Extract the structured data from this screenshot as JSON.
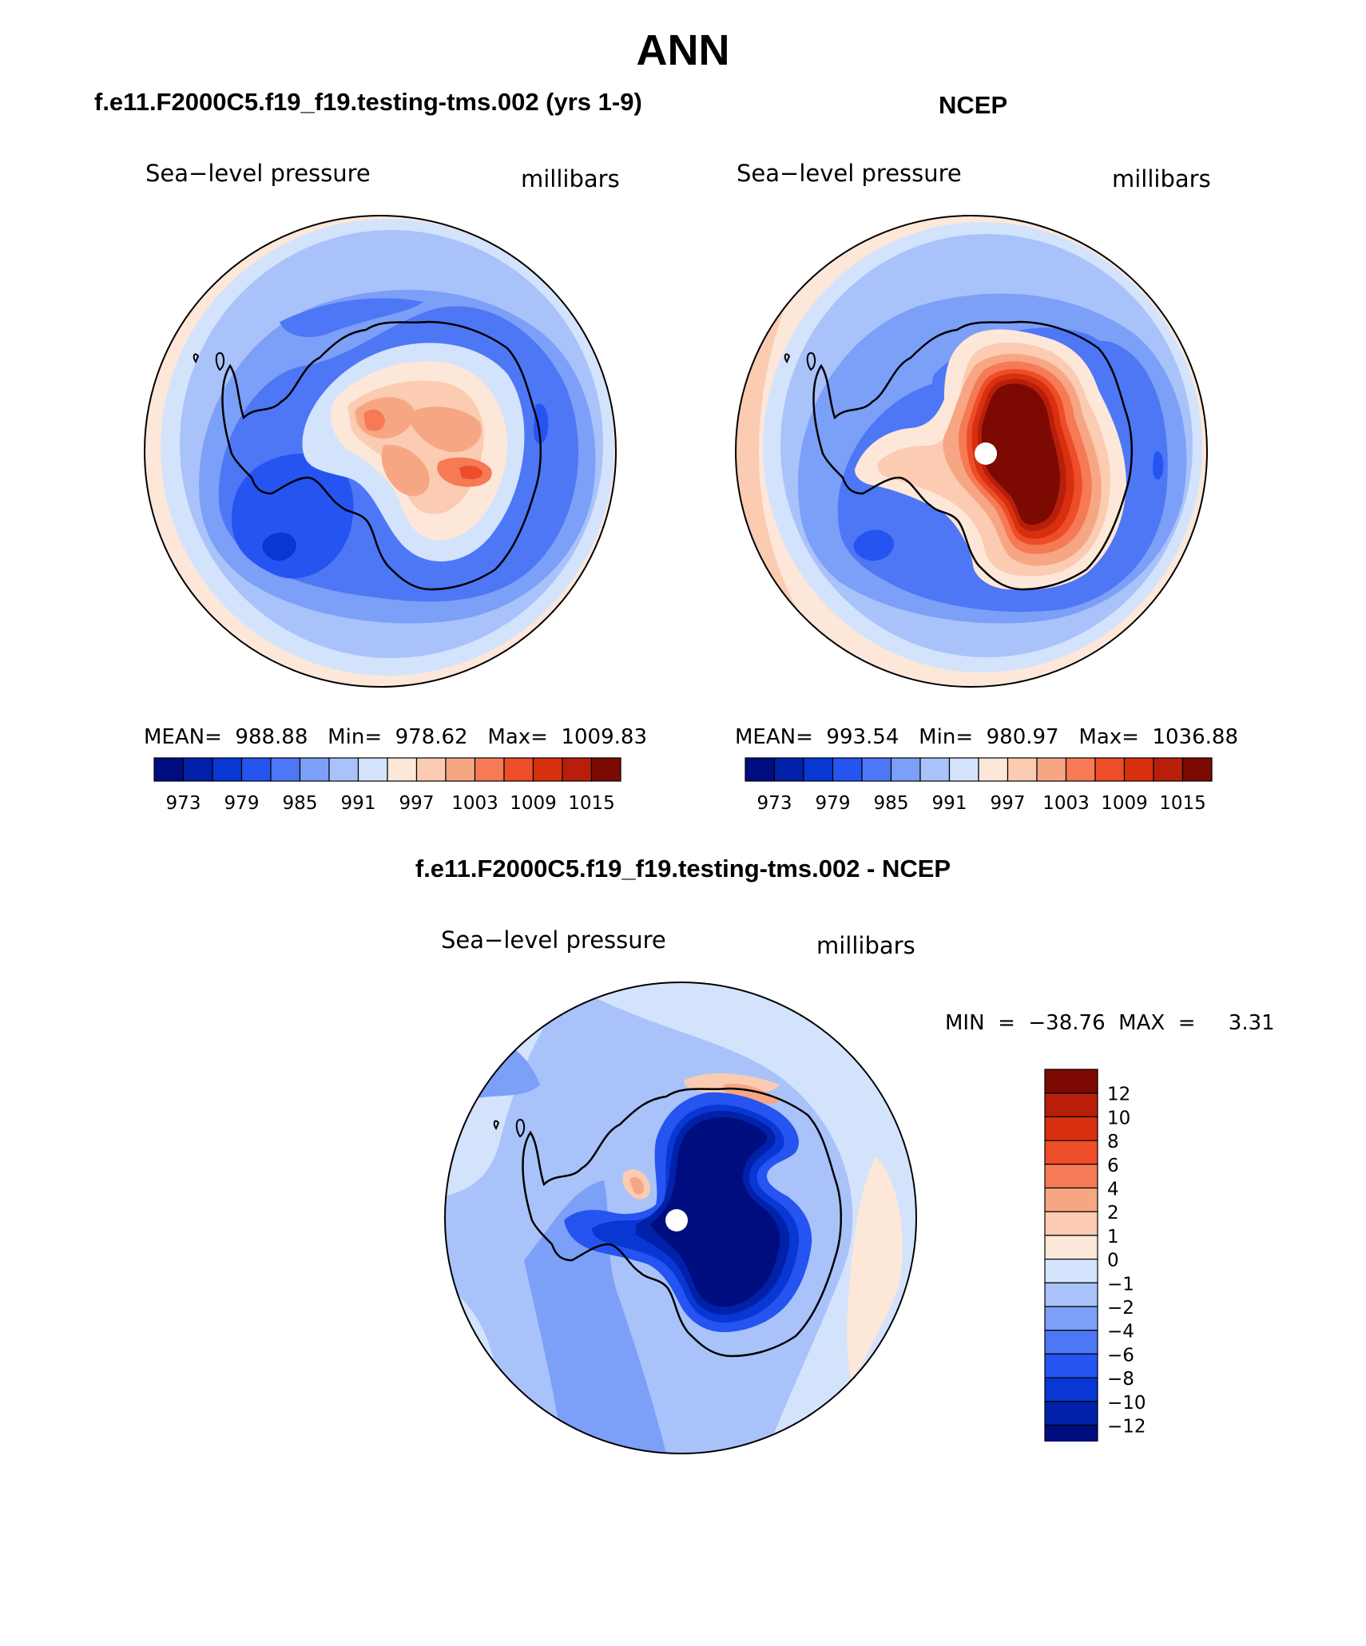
{
  "figure": {
    "season": "ANN"
  },
  "panels": {
    "model": {
      "title": "f.e11.F2000C5.f19_f19.testing-tms.002 (yrs 1-9)",
      "variable": "Sea−level pressure",
      "units": "millibars",
      "stats": "MEAN=  988.88   Min=  978.62   Max=  1009.83"
    },
    "obs": {
      "title": "NCEP",
      "variable": "Sea−level pressure",
      "units": "millibars",
      "stats": "MEAN=  993.54   Min=  980.97   Max=  1036.88"
    },
    "diff": {
      "title": "f.e11.F2000C5.f19_f19.testing-tms.002 - NCEP",
      "variable": "Sea−level pressure",
      "units": "millibars",
      "stats": "MIN  =  −38.76  MAX  =     3.31"
    }
  },
  "colorbars": {
    "abs": {
      "colors": [
        "#000d7f",
        "#0021a8",
        "#0837d4",
        "#2654f0",
        "#4e77f5",
        "#7c9ff7",
        "#a9c2fa",
        "#d3e3fc",
        "#fde7d9",
        "#fbcbb2",
        "#f7a684",
        "#f57a55",
        "#ed4d29",
        "#d8300f",
        "#b81f0b",
        "#7c0a02"
      ],
      "labels": [
        "973",
        "979",
        "985",
        "991",
        "997",
        "1003",
        "1009",
        "1015"
      ]
    },
    "diff": {
      "colors": [
        "#7c0a02",
        "#b81f0b",
        "#d8300f",
        "#ed4d29",
        "#f57a55",
        "#f7a684",
        "#fbcbb2",
        "#fde7d9",
        "#d3e3fc",
        "#a9c2fa",
        "#7c9ff7",
        "#4e77f5",
        "#2654f0",
        "#0837d4",
        "#0021a8",
        "#000d7f"
      ],
      "labels": [
        "12",
        "10",
        "8",
        "6",
        "4",
        "2",
        "1",
        "0",
        "−1",
        "−2",
        "−4",
        "−6",
        "−8",
        "−10",
        "−12"
      ]
    }
  }
}
